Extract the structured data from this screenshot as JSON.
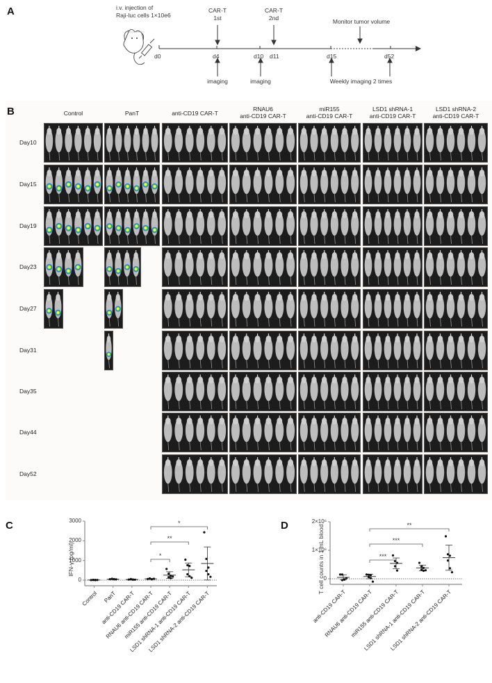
{
  "panel_A": {
    "letter": "A",
    "injection_label_line1": "i.v. injection of",
    "injection_label_line2": "Raji-luc cells 1×10e6",
    "events_above": [
      {
        "line1": "CAR-T",
        "line2": "1st",
        "day": "d4"
      },
      {
        "line1": "CAR-T",
        "line2": "2nd",
        "day": "d11"
      },
      {
        "line1": "Monitor tumor volume",
        "line2": "",
        "day": ""
      }
    ],
    "ticks": [
      "d0",
      "d4",
      "d10",
      "d11",
      "d15",
      "d52"
    ],
    "events_below": [
      {
        "label": "imaging",
        "day": "d4"
      },
      {
        "label": "imaging",
        "day": "d10"
      },
      {
        "label": "Weekly imaging 2 times",
        "day": "d15-d52"
      }
    ]
  },
  "panel_B": {
    "letter": "B",
    "columns": [
      {
        "line1": "Control",
        "line2": ""
      },
      {
        "line1": "PanT",
        "line2": ""
      },
      {
        "line1": "anti-CD19 CAR-T",
        "line2": ""
      },
      {
        "line1": "RNAU6",
        "line2": "anti-CD19 CAR-T"
      },
      {
        "line1": "miR155",
        "line2": "anti-CD19 CAR-T"
      },
      {
        "line1": "LSD1 shRNA-1",
        "line2": "anti-CD19 CAR-T"
      },
      {
        "line1": "LSD1 shRNA-2",
        "line2": "anti-CD19 CAR-T"
      }
    ],
    "rows": [
      "Day10",
      "Day15",
      "Day19",
      "Day23",
      "Day27",
      "Day31",
      "Day35",
      "Day44",
      "Day52"
    ],
    "surviving_mice": {
      "Control": [
        6,
        6,
        6,
        4,
        2,
        0,
        0,
        0,
        0
      ],
      "PanT": [
        6,
        6,
        6,
        4,
        2,
        1,
        0,
        0,
        0
      ]
    }
  },
  "chart_data": [
    {
      "panel": "C",
      "type": "scatter",
      "title": "",
      "xlabel": "",
      "ylabel": "IFN-γ (pg/ml)",
      "ylim": [
        0,
        3000
      ],
      "yticks": [
        "0",
        "1000",
        "2000",
        "3000"
      ],
      "categories": [
        "Control",
        "PanT",
        "anti-CD19 CAR-T",
        "RNAU6 anti-CD19 CAR-T",
        "miR155 anti-CD19 CAR-T",
        "LSD1 shRNA-1 anti-CD19 CAR-T",
        "LSD1 shRNA-2 anti-CD19 CAR-T"
      ],
      "points": [
        [
          5,
          10,
          15,
          20,
          0,
          8
        ],
        [
          50,
          60,
          45,
          70,
          55,
          40
        ],
        [
          30,
          40,
          20,
          60,
          35,
          25
        ],
        [
          60,
          80,
          40,
          90,
          50,
          70
        ],
        [
          570,
          330,
          220,
          150,
          100,
          180
        ],
        [
          1040,
          760,
          720,
          300,
          200,
          120
        ],
        [
          2430,
          1080,
          640,
          470,
          300,
          170
        ]
      ],
      "mean": [
        10,
        53,
        35,
        65,
        258,
        523,
        848
      ],
      "sd": [
        8,
        12,
        15,
        18,
        170,
        350,
        840
      ],
      "dotted_zero_line": true,
      "significance": [
        {
          "from": "RNAU6 anti-CD19 CAR-T",
          "to": "miR155 anti-CD19 CAR-T",
          "label": "*"
        },
        {
          "from": "RNAU6 anti-CD19 CAR-T",
          "to": "LSD1 shRNA-1 anti-CD19 CAR-T",
          "label": "**"
        },
        {
          "from": "RNAU6 anti-CD19 CAR-T",
          "to": "LSD1 shRNA-2 anti-CD19 CAR-T",
          "label": "*"
        }
      ]
    },
    {
      "panel": "D",
      "type": "scatter",
      "title": "",
      "xlabel": "",
      "ylabel": "T cell counts in 1 mL blood",
      "ylim": [
        0,
        2000000
      ],
      "yticks": [
        "0",
        "1×10⁶",
        "2×10⁶"
      ],
      "categories": [
        "anti-CD19 CAR-T",
        "RNAU6 anti-CD19 CAR-T",
        "miR155 anti-CD19 CAR-T",
        "LSD1 shRNA-1 anti-CD19 CAR-T",
        "LSD1 shRNA-2 anti-CD19 CAR-T"
      ],
      "points": [
        [
          150000,
          150000,
          -20000,
          -50000,
          -30000,
          20000
        ],
        [
          150000,
          140000,
          130000,
          60000,
          20000,
          -100000
        ],
        [
          820000,
          620000,
          560000,
          440000,
          290000
        ],
        [
          560000,
          430000,
          380000,
          320000,
          280000,
          300000
        ],
        [
          1490000,
          860000,
          810000,
          640000,
          370000,
          230000
        ]
      ],
      "mean": [
        50000,
        80000,
        540000,
        380000,
        740000
      ],
      "sd": [
        90000,
        80000,
        190000,
        100000,
        440000
      ],
      "dotted_zero_line": true,
      "significance": [
        {
          "from": "RNAU6 anti-CD19 CAR-T",
          "to": "miR155 anti-CD19 CAR-T",
          "label": "***"
        },
        {
          "from": "RNAU6 anti-CD19 CAR-T",
          "to": "LSD1 shRNA-1 anti-CD19 CAR-T",
          "label": "***"
        },
        {
          "from": "RNAU6 anti-CD19 CAR-T",
          "to": "LSD1 shRNA-2 anti-CD19 CAR-T",
          "label": "**"
        }
      ]
    }
  ],
  "panel_C": {
    "letter": "C"
  },
  "panel_D": {
    "letter": "D"
  }
}
